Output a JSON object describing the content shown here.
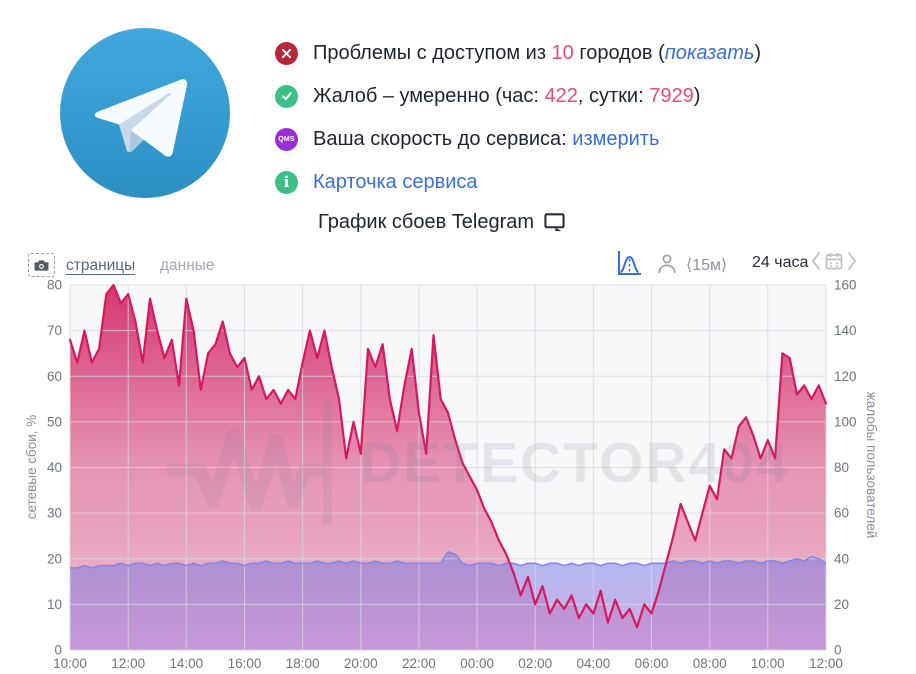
{
  "logo": {
    "service": "Telegram"
  },
  "colors": {
    "accent_number": "#ef4a78",
    "link_blue": "#3a6ed8",
    "icon_red": "#b5283c",
    "icon_green": "#3bc188",
    "icon_purple": "#9a2ed2",
    "failures_line": "#d6195e",
    "complaints_line": "#8289ea"
  },
  "status": {
    "line1": {
      "t1": "Проблемы с доступом из ",
      "num": "10",
      "t2": " городов (",
      "link": "показать",
      "t3": ")"
    },
    "line2": {
      "t1": "Жалоб – умеренно (час: ",
      "num1": "422",
      "t2": ", сутки: ",
      "num2": "7929",
      "t3": ")"
    },
    "line3": {
      "t1": "Ваша скорость до сервиса: ",
      "link": "измерить"
    },
    "line4": {
      "link": "Карточка сервиса"
    },
    "qms_label": "QMS",
    "info_label": "i"
  },
  "title": {
    "text": "График сбоев Telegram"
  },
  "toolbar": {
    "tabs": [
      {
        "label": "страницы",
        "active": true
      },
      {
        "label": "данные",
        "active": false
      }
    ],
    "interval": "⟨15м⟩",
    "range": "24 часа"
  },
  "chart_data": {
    "type": "area",
    "title": "График сбоев Telegram",
    "watermark": "DETECTOR404",
    "x_start": "10:00",
    "x_step_minutes": 15,
    "x_ticks": [
      "10:00",
      "12:00",
      "14:00",
      "16:00",
      "18:00",
      "20:00",
      "22:00",
      "00:00",
      "02:00",
      "04:00",
      "06:00",
      "08:00",
      "10:00",
      "12:00"
    ],
    "grid": true,
    "left_axis": {
      "label": "сетевые сбои, %",
      "min": 0,
      "max": 80,
      "ticks": [
        0,
        10,
        20,
        30,
        40,
        50,
        60,
        70,
        80
      ]
    },
    "right_axis": {
      "label": "жалобы пользователей",
      "min": 0,
      "max": 160,
      "ticks": [
        0,
        20,
        40,
        60,
        80,
        100,
        120,
        140,
        160
      ]
    },
    "series": [
      {
        "name": "сетевые сбои, %",
        "axis": "left",
        "color": "#d6195e",
        "values": [
          68,
          63,
          70,
          63,
          66,
          78,
          80,
          76,
          78,
          72,
          63,
          77,
          70,
          64,
          68,
          58,
          77,
          70,
          57,
          65,
          67,
          72,
          65,
          62,
          64,
          57,
          60,
          55,
          57,
          54,
          57,
          55,
          63,
          70,
          64,
          70,
          62,
          55,
          42,
          50,
          43,
          66,
          62,
          67,
          55,
          48,
          58,
          66,
          52,
          43,
          69,
          55,
          52,
          46,
          41,
          38,
          35,
          31,
          28,
          24,
          21,
          17,
          12,
          16,
          10,
          14,
          8,
          11,
          9,
          12,
          7,
          10,
          8,
          13,
          6,
          11,
          7,
          9,
          5,
          10,
          8,
          13,
          19,
          25,
          32,
          28,
          24,
          30,
          36,
          33,
          44,
          42,
          49,
          51,
          47,
          42,
          46,
          42,
          65,
          64,
          56,
          58,
          55,
          58,
          54
        ]
      },
      {
        "name": "жалобы пользователей",
        "axis": "right",
        "color": "#8289ea",
        "values": [
          36,
          36,
          37,
          36,
          37,
          37,
          37,
          38,
          37,
          38,
          38,
          37,
          38,
          37,
          38,
          38,
          37,
          38,
          37,
          38,
          38,
          39,
          38,
          38,
          37,
          38,
          38,
          39,
          38,
          38,
          39,
          38,
          38,
          38,
          39,
          38,
          38,
          39,
          38,
          39,
          38,
          38,
          39,
          38,
          38,
          39,
          38,
          38,
          38,
          38,
          38,
          38,
          43,
          42,
          38,
          37,
          38,
          38,
          38,
          37,
          38,
          38,
          37,
          38,
          38,
          37,
          38,
          38,
          37,
          38,
          37,
          38,
          38,
          37,
          38,
          38,
          37,
          38,
          38,
          37,
          38,
          38,
          38,
          39,
          38,
          39,
          39,
          38,
          39,
          38,
          39,
          39,
          38,
          39,
          39,
          38,
          39,
          39,
          38,
          39,
          40,
          39,
          41,
          40,
          38
        ]
      }
    ]
  }
}
